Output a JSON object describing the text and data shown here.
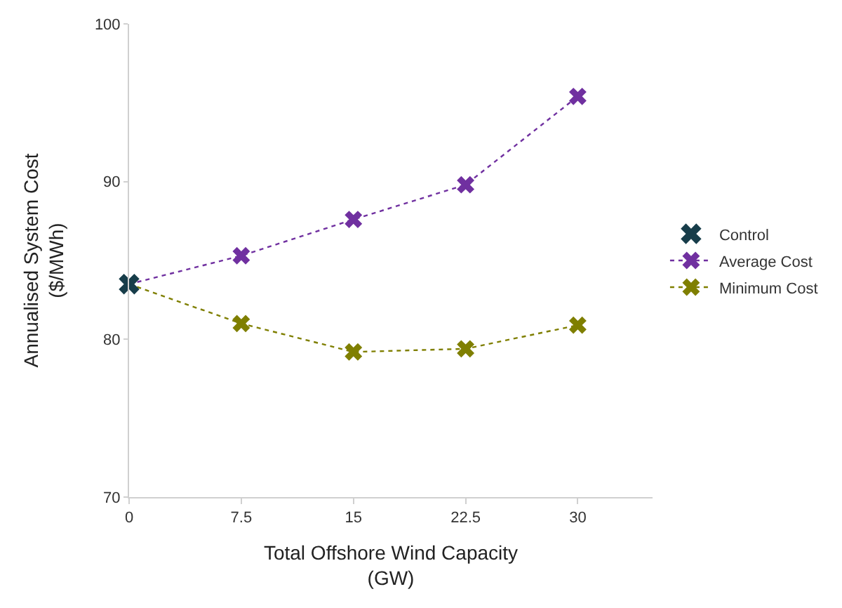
{
  "chart_data": {
    "type": "line",
    "xlabel": "Total Offshore Wind Capacity\n(GW)",
    "ylabel": "Annualised System Cost\n($/MWh)",
    "series": [
      {
        "name": "Control",
        "type": "scatter",
        "color": "#173d4a",
        "x": [
          0
        ],
        "values": [
          83.5
        ]
      },
      {
        "name": "Average Cost",
        "color": "#7030a0",
        "x": [
          0,
          7.5,
          15,
          22.5,
          30
        ],
        "values": [
          83.5,
          85.3,
          87.6,
          89.8,
          95.4
        ]
      },
      {
        "name": "Minimum Cost",
        "color": "#7f7f00",
        "x": [
          0,
          7.5,
          15,
          22.5,
          30
        ],
        "values": [
          83.5,
          81.0,
          79.2,
          79.4,
          80.9
        ]
      }
    ],
    "xlim": [
      0,
      35
    ],
    "xticks": [
      0,
      7.5,
      15,
      22.5,
      30
    ],
    "ylim": [
      70,
      100
    ],
    "yticks": [
      70,
      80,
      90,
      100
    ],
    "grid": false,
    "legend": "right",
    "marker": "cross",
    "line_style": "dotted"
  }
}
